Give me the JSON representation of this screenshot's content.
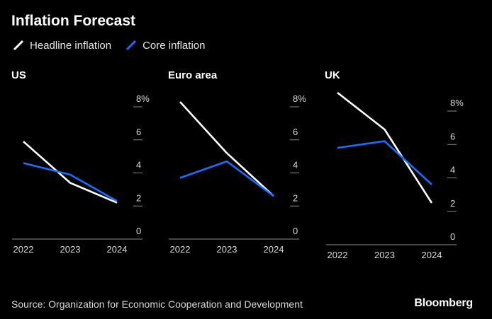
{
  "title": "Inflation Forecast",
  "legend": {
    "headline": "Headline inflation",
    "core": "Core inflation"
  },
  "colors": {
    "headline": "#ffffff",
    "core": "#1a6dff",
    "axis": "#8c8c8c",
    "text": "#d9d9d9",
    "background": "#000000"
  },
  "source": "Source: Organization for Economic Cooperation and Development",
  "brand": "Bloomberg",
  "chart_data": [
    {
      "type": "line",
      "title": "US",
      "categories": [
        "2022",
        "2023",
        "2024"
      ],
      "series": [
        {
          "name": "Headline inflation",
          "values": [
            5.9,
            3.4,
            2.2
          ]
        },
        {
          "name": "Core inflation",
          "values": [
            4.6,
            3.9,
            2.3
          ]
        }
      ],
      "ylim": [
        0,
        8
      ],
      "yticks": [
        "0",
        "2",
        "4",
        "6",
        "8%"
      ],
      "grid": false,
      "y_axis_position": "right"
    },
    {
      "type": "line",
      "title": "Euro area",
      "categories": [
        "2022",
        "2023",
        "2024"
      ],
      "series": [
        {
          "name": "Headline inflation",
          "values": [
            8.3,
            5.2,
            2.6
          ]
        },
        {
          "name": "Core inflation",
          "values": [
            3.7,
            4.7,
            2.6
          ]
        }
      ],
      "ylim": [
        0,
        8
      ],
      "yticks": [
        "0",
        "2",
        "4",
        "6",
        "8%"
      ],
      "grid": false,
      "y_axis_position": "right"
    },
    {
      "type": "line",
      "title": "UK",
      "categories": [
        "2022",
        "2023",
        "2024"
      ],
      "series": [
        {
          "name": "Headline inflation",
          "values": [
            9.1,
            6.9,
            2.5
          ]
        },
        {
          "name": "Core inflation",
          "values": [
            5.8,
            6.2,
            3.6
          ]
        }
      ],
      "ylim": [
        0,
        8
      ],
      "yticks": [
        "0",
        "2",
        "4",
        "6",
        "8%"
      ],
      "grid": false,
      "y_axis_position": "right"
    }
  ]
}
